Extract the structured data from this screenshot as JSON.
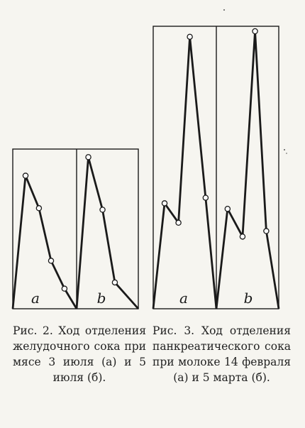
{
  "colors": {
    "background": "#f6f5f0",
    "ink": "#1a1a1a"
  },
  "figures": [
    {
      "caption": "Рис. 2. Ход отделения желудочного сока при мясе 3 июля (а) и 5 июля (б).",
      "panels": [
        {
          "label": "a",
          "values": [
            0,
            0.86,
            0.65,
            0.31,
            0.13,
            0.0
          ]
        },
        {
          "label": "b",
          "values": [
            0,
            0.98,
            0.64,
            0.17,
            0.0
          ]
        }
      ]
    },
    {
      "caption": "Рис. 3. Ход отделения панкреатического сока при молоке 14 февраля (а) и 5 марта (б).",
      "panels": [
        {
          "label": "a",
          "values": [
            0,
            0.38,
            0.31,
            0.98,
            0.4,
            0.0
          ]
        },
        {
          "label": "b",
          "values": [
            0,
            0.36,
            0.26,
            1.0,
            0.28,
            0.0
          ]
        }
      ]
    }
  ],
  "chart_data": [
    {
      "type": "line",
      "title": "Рис. 2. Ход отделения желудочного сока при мясе 3 июля (а) и 5 июля (б).",
      "series": [
        {
          "name": "a",
          "values": [
            0,
            0.86,
            0.65,
            0.31,
            0.13,
            0.0
          ]
        },
        {
          "name": "b",
          "values": [
            0,
            0.98,
            0.64,
            0.17,
            0.0
          ]
        }
      ],
      "grid": false
    },
    {
      "type": "line",
      "title": "Рис. 3. Ход отделения панкреатического сока при молоке 14 февраля (а) и 5 марта (б).",
      "series": [
        {
          "name": "a",
          "values": [
            0,
            0.38,
            0.31,
            0.98,
            0.4,
            0.0
          ]
        },
        {
          "name": "b",
          "values": [
            0,
            0.36,
            0.26,
            1.0,
            0.28,
            0.0
          ]
        }
      ],
      "grid": false
    }
  ]
}
